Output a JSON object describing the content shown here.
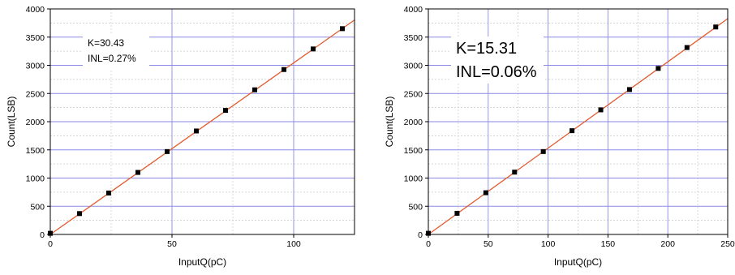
{
  "chart_data": [
    {
      "type": "scatter",
      "xlabel": "InputQ(pC)",
      "ylabel": "Count(LSB)",
      "xlim": [
        0,
        125
      ],
      "ylim": [
        0,
        4000
      ],
      "xticks": [
        0,
        50,
        100
      ],
      "yticks": [
        0,
        500,
        1000,
        1500,
        2000,
        2500,
        3000,
        3500,
        4000
      ],
      "grid": true,
      "annotation": [
        "K=30.43",
        "INL=0.27%"
      ],
      "series": [
        {
          "x": [
            0,
            12,
            24,
            36,
            48,
            60,
            72,
            84,
            96,
            108,
            120
          ],
          "y": [
            20,
            370,
            735,
            1100,
            1470,
            1835,
            2200,
            2565,
            2925,
            3290,
            3650
          ]
        }
      ],
      "fit_line": {
        "slope": 30.43,
        "intercept": 0
      }
    },
    {
      "type": "scatter",
      "xlabel": "InputQ(pC)",
      "ylabel": "Count(LSB)",
      "xlim": [
        0,
        250
      ],
      "ylim": [
        0,
        4000
      ],
      "xticks": [
        0,
        50,
        100,
        150,
        200,
        250
      ],
      "yticks": [
        0,
        500,
        1000,
        1500,
        2000,
        2500,
        3000,
        3500,
        4000
      ],
      "grid": true,
      "annotation": [
        "K=15.31",
        "INL=0.06%"
      ],
      "series": [
        {
          "x": [
            0,
            24,
            48,
            72,
            96,
            120,
            144,
            168,
            192,
            216,
            240
          ],
          "y": [
            20,
            375,
            740,
            1105,
            1470,
            1840,
            2210,
            2570,
            2945,
            3315,
            3680
          ]
        }
      ],
      "fit_line": {
        "slope": 15.31,
        "intercept": 0
      }
    }
  ]
}
